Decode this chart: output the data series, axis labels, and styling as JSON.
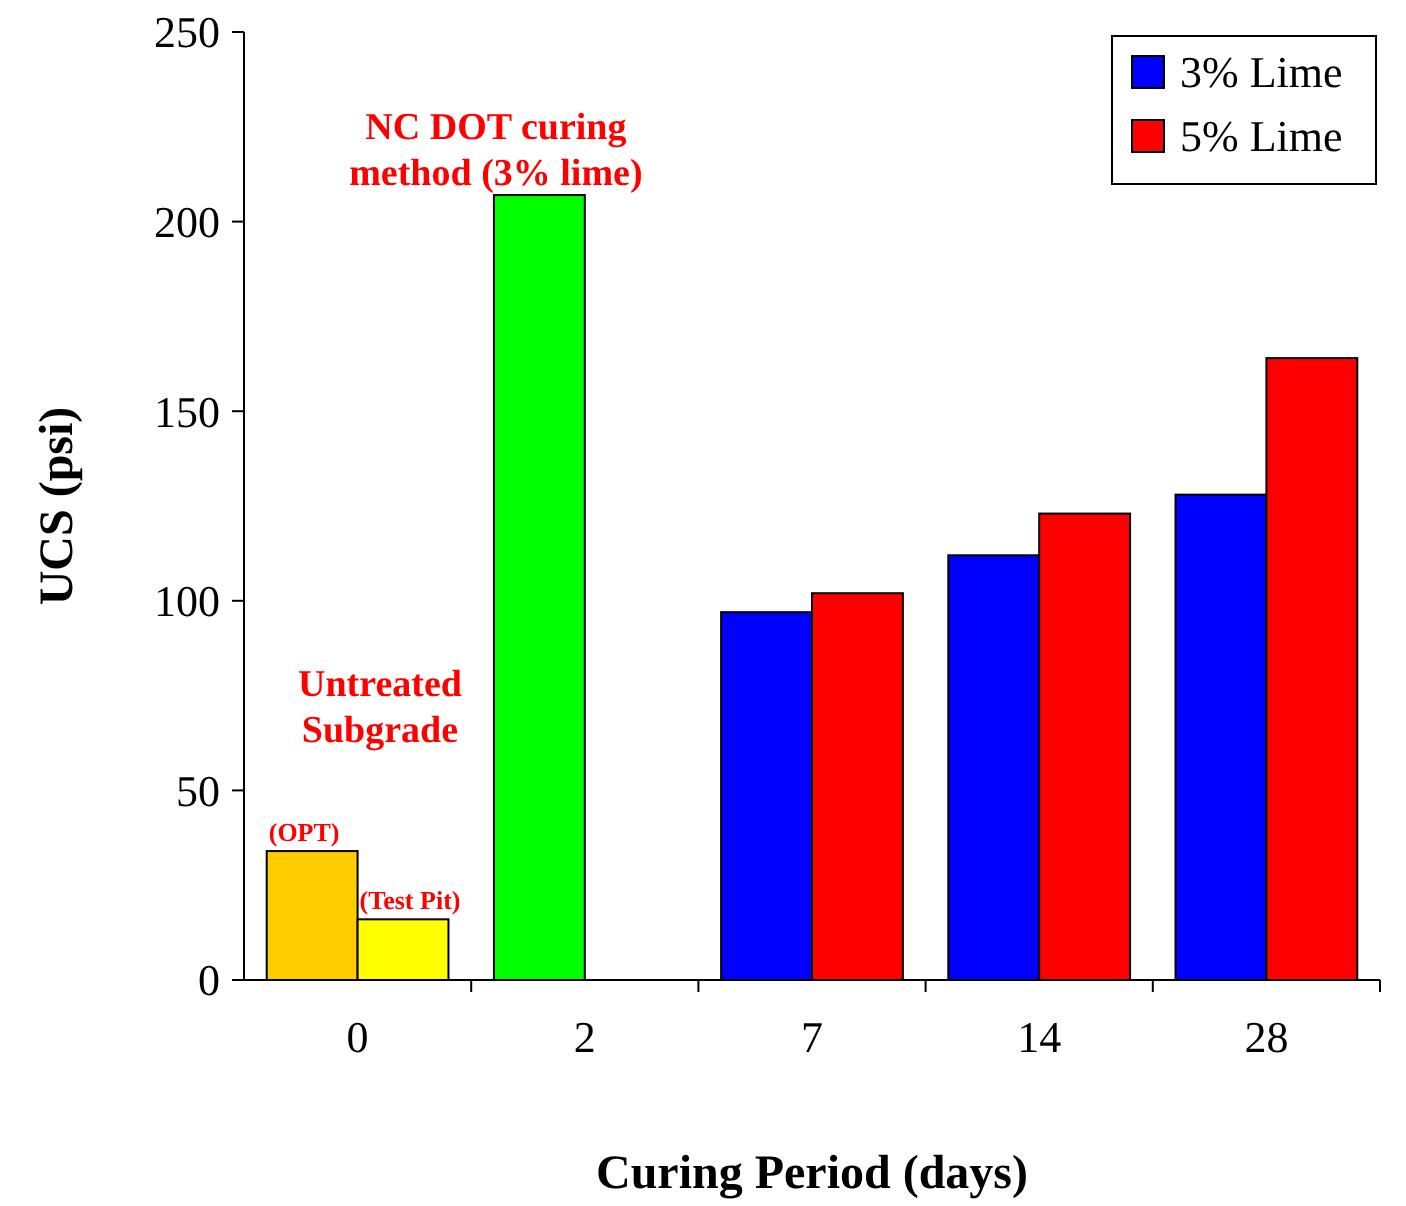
{
  "chart_data": {
    "type": "bar",
    "xlabel": "Curing Period (days)",
    "ylabel": "UCS (psi)",
    "categories": [
      "0",
      "2",
      "7",
      "14",
      "28"
    ],
    "series": [
      {
        "name": "3% Lime",
        "color": "#0000ff",
        "colors": [
          "#ffcc00",
          "#00ff00",
          "#0000ff",
          "#0000ff",
          "#0000ff"
        ],
        "values": [
          34,
          207,
          97,
          112,
          128
        ]
      },
      {
        "name": "5% Lime",
        "color": "#ff0000",
        "colors": [
          "#ffff00",
          null,
          "#ff0000",
          "#ff0000",
          "#ff0000"
        ],
        "values": [
          16,
          null,
          102,
          123,
          164
        ]
      }
    ],
    "ylim": [
      0,
      250
    ],
    "yticks": [
      0,
      50,
      100,
      150,
      200,
      250
    ],
    "legend": "top right",
    "annotations": [
      {
        "text": "NC DOT curing method (3% lime)",
        "x": "2",
        "y": 207
      },
      "Untreated Subgrade",
      {
        "text": "(OPT)",
        "x": "0",
        "y": 34
      },
      {
        "text": "(Test Pit)",
        "x": "0",
        "y": 16
      }
    ]
  }
}
